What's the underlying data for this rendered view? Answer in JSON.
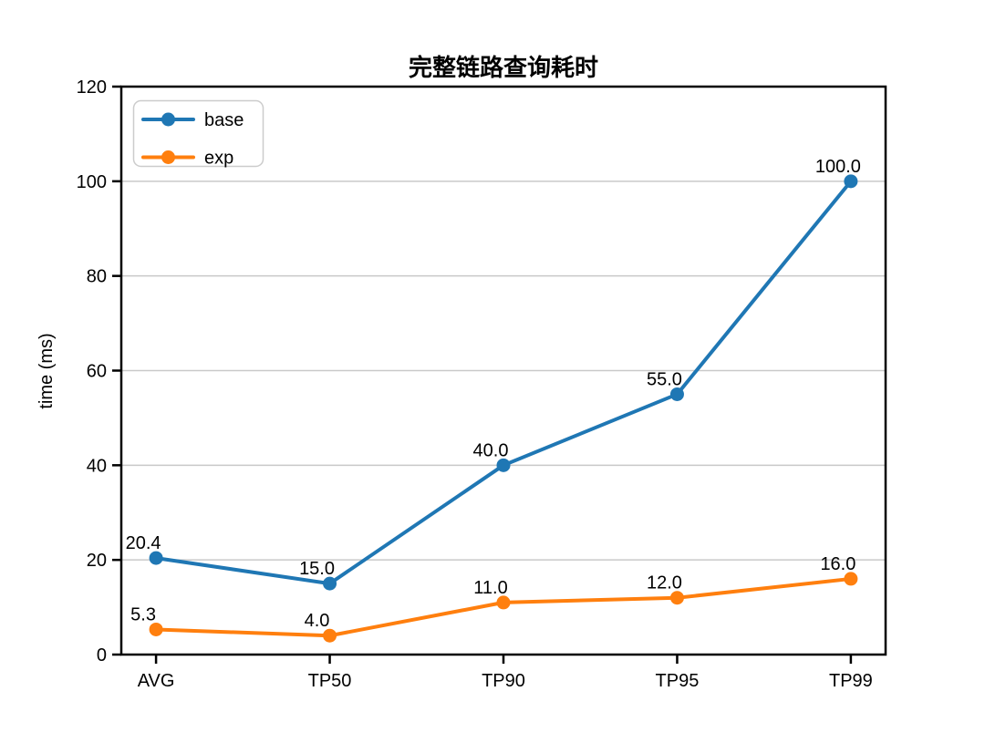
{
  "figure": {
    "background": "#ffffff"
  },
  "chart_data": {
    "type": "line",
    "title": "完整链路查询耗时",
    "xlabel": "",
    "ylabel": "time (ms)",
    "categories": [
      "AVG",
      "TP50",
      "TP90",
      "TP95",
      "TP99"
    ],
    "series": [
      {
        "name": "base",
        "color": "#1f77b4",
        "values": [
          20.4,
          15.0,
          40.0,
          55.0,
          100.0
        ],
        "labels": [
          "20.4",
          "15.0",
          "40.0",
          "55.0",
          "100.0"
        ]
      },
      {
        "name": "exp",
        "color": "#ff7f0e",
        "values": [
          5.3,
          4.0,
          11.0,
          12.0,
          16.0
        ],
        "labels": [
          "5.3",
          "4.0",
          "11.0",
          "12.0",
          "16.0"
        ]
      }
    ],
    "ylim": [
      0,
      120
    ],
    "yticks": [
      0,
      20,
      40,
      60,
      80,
      100,
      120
    ],
    "grid": "horizontal",
    "grid_color": "#c9c9c9",
    "axis_color": "#000000",
    "legend_position": "upper-left",
    "legend_border_color": "#cccccc"
  }
}
